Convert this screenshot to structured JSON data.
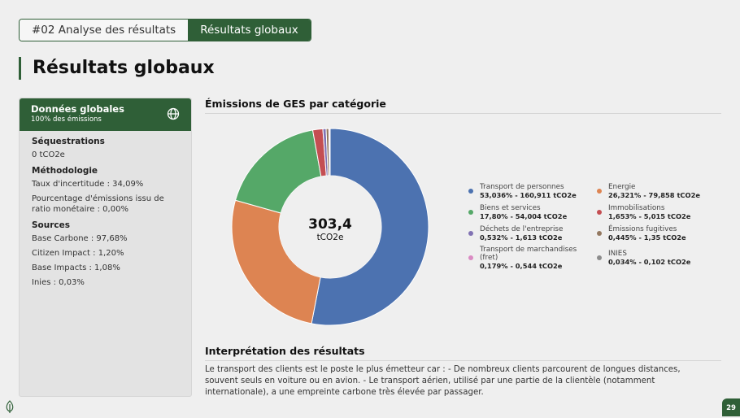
{
  "breadcrumb": {
    "section": "#02 Analyse des résultats",
    "current": "Résultats globaux"
  },
  "page_title": "Résultats globaux",
  "panel": {
    "title": "Données globales",
    "subtitle": "100% des émissions",
    "icon": "globe-icon",
    "sequestrations_title": "Séquestrations",
    "sequestrations_value": "0 tCO2e",
    "methodologie_title": "Méthodologie",
    "incertitude": "Taux d'incertitude : 34,09%",
    "ratio": "Pourcentage d'émissions issu de ratio monétaire : 0,00%",
    "sources_title": "Sources",
    "sources": [
      "Base Carbone : 97,68%",
      "Citizen Impact : 1,20%",
      "Base Impacts : 1,08%",
      "Inies : 0,03%"
    ]
  },
  "chart_section_title": "Émissions de GES par catégorie",
  "chart_data": {
    "type": "pie",
    "donut": true,
    "title": "Émissions de GES par catégorie",
    "center_value": "303,4",
    "center_unit": "tCO2e",
    "slices": [
      {
        "name": "Transport de personnes",
        "percent": 53.036,
        "value": 160.911,
        "label": "53,036% - 160,911 tCO2e",
        "color": "#4c72b0"
      },
      {
        "name": "Energie",
        "percent": 26.321,
        "value": 79.858,
        "label": "26,321% - 79,858 tCO2e",
        "color": "#dd8452"
      },
      {
        "name": "Biens et services",
        "percent": 17.8,
        "value": 54.004,
        "label": "17,80% - 54,004 tCO2e",
        "color": "#55a868"
      },
      {
        "name": "Immobilisations",
        "percent": 1.653,
        "value": 5.015,
        "label": "1,653% - 5,015 tCO2e",
        "color": "#c44e52"
      },
      {
        "name": "Déchets de l'entreprise",
        "percent": 0.532,
        "value": 1.613,
        "label": "0,532% - 1,613 tCO2e",
        "color": "#8172b3"
      },
      {
        "name": "Émissions fugitives",
        "percent": 0.445,
        "value": 1.35,
        "label": "0,445% - 1,35 tCO2e",
        "color": "#937860"
      },
      {
        "name": "Transport de marchandises (fret)",
        "percent": 0.179,
        "value": 0.544,
        "label": "0,179% - 0,544 tCO2e",
        "color": "#da8bc3"
      },
      {
        "name": "INIES",
        "percent": 0.034,
        "value": 0.102,
        "label": "0,034% - 0,102 tCO2e",
        "color": "#8c8c8c"
      }
    ],
    "legend_order": [
      0,
      1,
      2,
      3,
      4,
      5,
      6,
      7
    ],
    "legend_position": "right"
  },
  "interpretation": {
    "title": "Interprétation des résultats",
    "text": "Le transport des clients est le poste le plus émetteur car : - De nombreux clients parcourent de longues distances, souvent seuls en voiture ou en avion. - Le transport aérien, utilisé par une partie de la clientèle (notamment internationale), a une empreinte carbone très élevée par passager."
  },
  "page_number": "29"
}
